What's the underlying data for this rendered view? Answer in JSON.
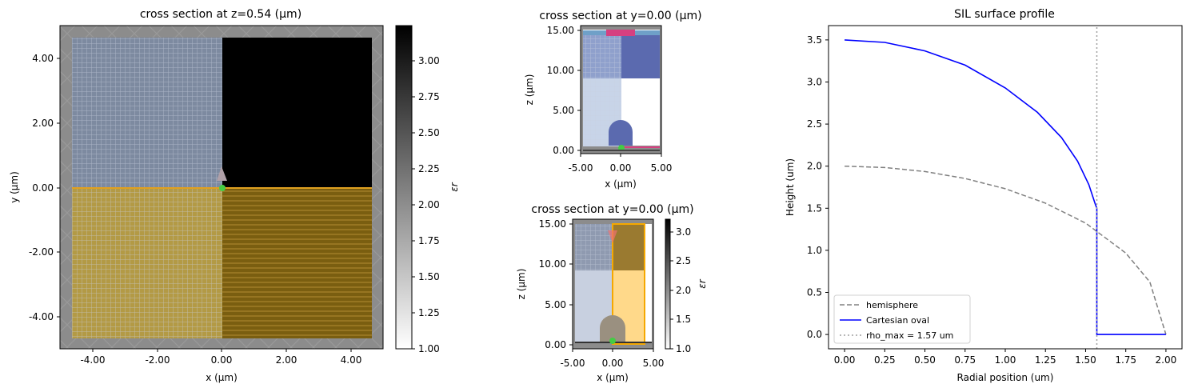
{
  "figure": {
    "panel_left": {
      "title": "cross section at z=0.54 (μm)",
      "xlabel": "x (μm)",
      "ylabel": "y (μm)",
      "xticks": [
        "-4.00",
        "-2.00",
        "0.00",
        "2.00",
        "4.00"
      ],
      "yticks": [
        "4.00",
        "2.00",
        "0.00",
        "-2.00",
        "-4.00"
      ],
      "colorbar": {
        "label": "εr",
        "ticks": [
          "3.00",
          "2.75",
          "2.50",
          "2.25",
          "2.00",
          "1.75",
          "1.50",
          "1.25",
          "1.00"
        ]
      }
    },
    "panel_top": {
      "title": "cross section at y=0.00 (μm)",
      "xlabel": "x (μm)",
      "ylabel": "z (μm)",
      "xticks": [
        "-5.00",
        "0.00",
        "5.00"
      ],
      "yticks": [
        "15.00",
        "10.00",
        "5.00",
        "0.00"
      ]
    },
    "panel_bottom": {
      "title": "cross section at y=0.00 (μm)",
      "xlabel": "x (μm)",
      "ylabel": "z (μm)",
      "xticks": [
        "-5.00",
        "0.00",
        "5.00"
      ],
      "yticks": [
        "15.00",
        "10.00",
        "5.00",
        "0.00"
      ],
      "colorbar": {
        "label": "εr",
        "ticks": [
          "3.0",
          "2.5",
          "2.0",
          "1.5",
          "1.0"
        ]
      }
    },
    "colors": {
      "blue_line": "#0000ff",
      "hemisphere": "#808080",
      "rho_line": "#a0a0a0",
      "overlay_yellow": "#f5b800",
      "overlay_blue": "#6f8fd8",
      "pink": "#d64080",
      "green_dot": "#44cc44"
    }
  },
  "chart_data": [
    {
      "type": "heatmap",
      "title": "cross section at z=0.54 (μm)",
      "xlabel": "x (μm)",
      "ylabel": "y (μm)",
      "xlim": [
        -5,
        5
      ],
      "ylim": [
        -5,
        5
      ],
      "colorbar": {
        "label": "εr",
        "range": [
          1.0,
          3.25
        ]
      }
    },
    {
      "type": "heatmap",
      "title": "cross section at y=0.00 (μm)",
      "xlabel": "x (μm)",
      "ylabel": "z (μm)",
      "xlim": [
        -5,
        5
      ],
      "ylim": [
        -0.5,
        15.5
      ]
    },
    {
      "type": "heatmap",
      "title": "cross section at y=0.00 (μm)",
      "xlabel": "x (μm)",
      "ylabel": "z (μm)",
      "xlim": [
        -5,
        5
      ],
      "ylim": [
        -0.5,
        15.5
      ],
      "colorbar": {
        "label": "εr",
        "range": [
          1.0,
          3.2
        ]
      }
    },
    {
      "type": "line",
      "title": "SIL surface profile",
      "xlabel": "Radial position (um)",
      "ylabel": "Height (um)",
      "xlim": [
        -0.1,
        2.1
      ],
      "ylim": [
        -0.17,
        3.67
      ],
      "xticks": [
        "0.00",
        "0.25",
        "0.50",
        "0.75",
        "1.00",
        "1.25",
        "1.50",
        "1.75",
        "2.00"
      ],
      "yticks": [
        "0.0",
        "0.5",
        "1.0",
        "1.5",
        "2.0",
        "2.5",
        "3.0",
        "3.5"
      ],
      "legend_position": "lower-left",
      "series": [
        {
          "name": "hemisphere",
          "style": "dashed",
          "color": "#808080",
          "x": [
            0,
            0.25,
            0.5,
            0.75,
            1.0,
            1.25,
            1.5,
            1.75,
            1.9,
            2.0
          ],
          "y": [
            2.0,
            1.984,
            1.936,
            1.854,
            1.732,
            1.561,
            1.323,
            0.968,
            0.624,
            0.0
          ]
        },
        {
          "name": "Cartesian oval",
          "style": "solid",
          "color": "#0000ff",
          "x": [
            0,
            0.25,
            0.5,
            0.75,
            1.0,
            1.2,
            1.35,
            1.45,
            1.52,
            1.56,
            1.57,
            1.57,
            2.0
          ],
          "y": [
            3.5,
            3.47,
            3.37,
            3.2,
            2.93,
            2.64,
            2.34,
            2.06,
            1.78,
            1.55,
            1.5,
            0.0,
            0.0
          ]
        },
        {
          "name": "rho_max = 1.57 um",
          "style": "dotted",
          "color": "#a0a0a0",
          "x": [
            1.57,
            1.57
          ],
          "y": [
            -0.17,
            3.67
          ]
        }
      ]
    }
  ]
}
